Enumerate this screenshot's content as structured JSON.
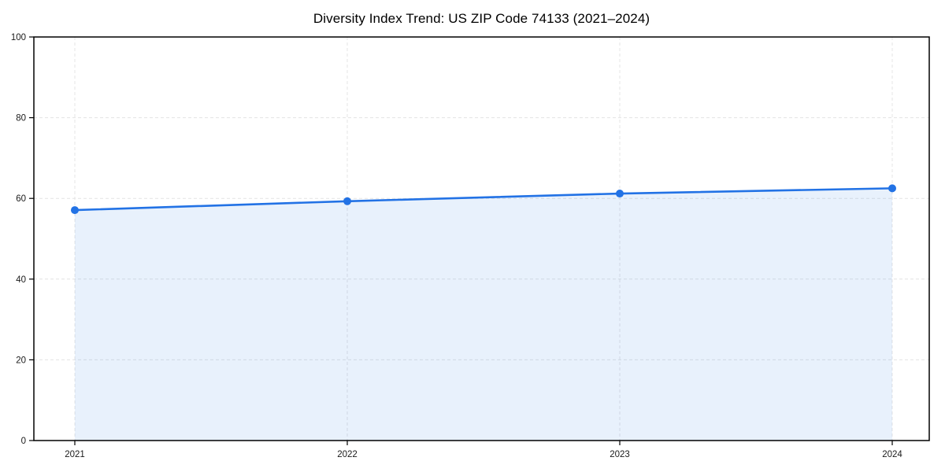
{
  "chart_data": {
    "type": "line",
    "title": "Diversity Index Trend: US ZIP Code 74133 (2021–2024)",
    "categories": [
      "2021",
      "2022",
      "2023",
      "2024"
    ],
    "series": [
      {
        "name": "Diversity Index",
        "values": [
          57.1,
          59.3,
          61.2,
          62.5
        ]
      }
    ],
    "xlabel": "",
    "ylabel": "",
    "ylim": [
      0,
      100
    ],
    "yticks": [
      0,
      20,
      40,
      60,
      80,
      100
    ],
    "grid": true,
    "grid_style": "dashed",
    "legend": "none",
    "area_fill": true,
    "marker": "circle",
    "colors": {
      "line": "#2272e5",
      "marker": "#2272e5",
      "area": "rgba(34,114,229,0.10)",
      "grid": "#e4e4e4",
      "axis": "#000000",
      "tick_label": "#1a1a1a",
      "title": "#000000",
      "background": "#ffffff"
    }
  }
}
